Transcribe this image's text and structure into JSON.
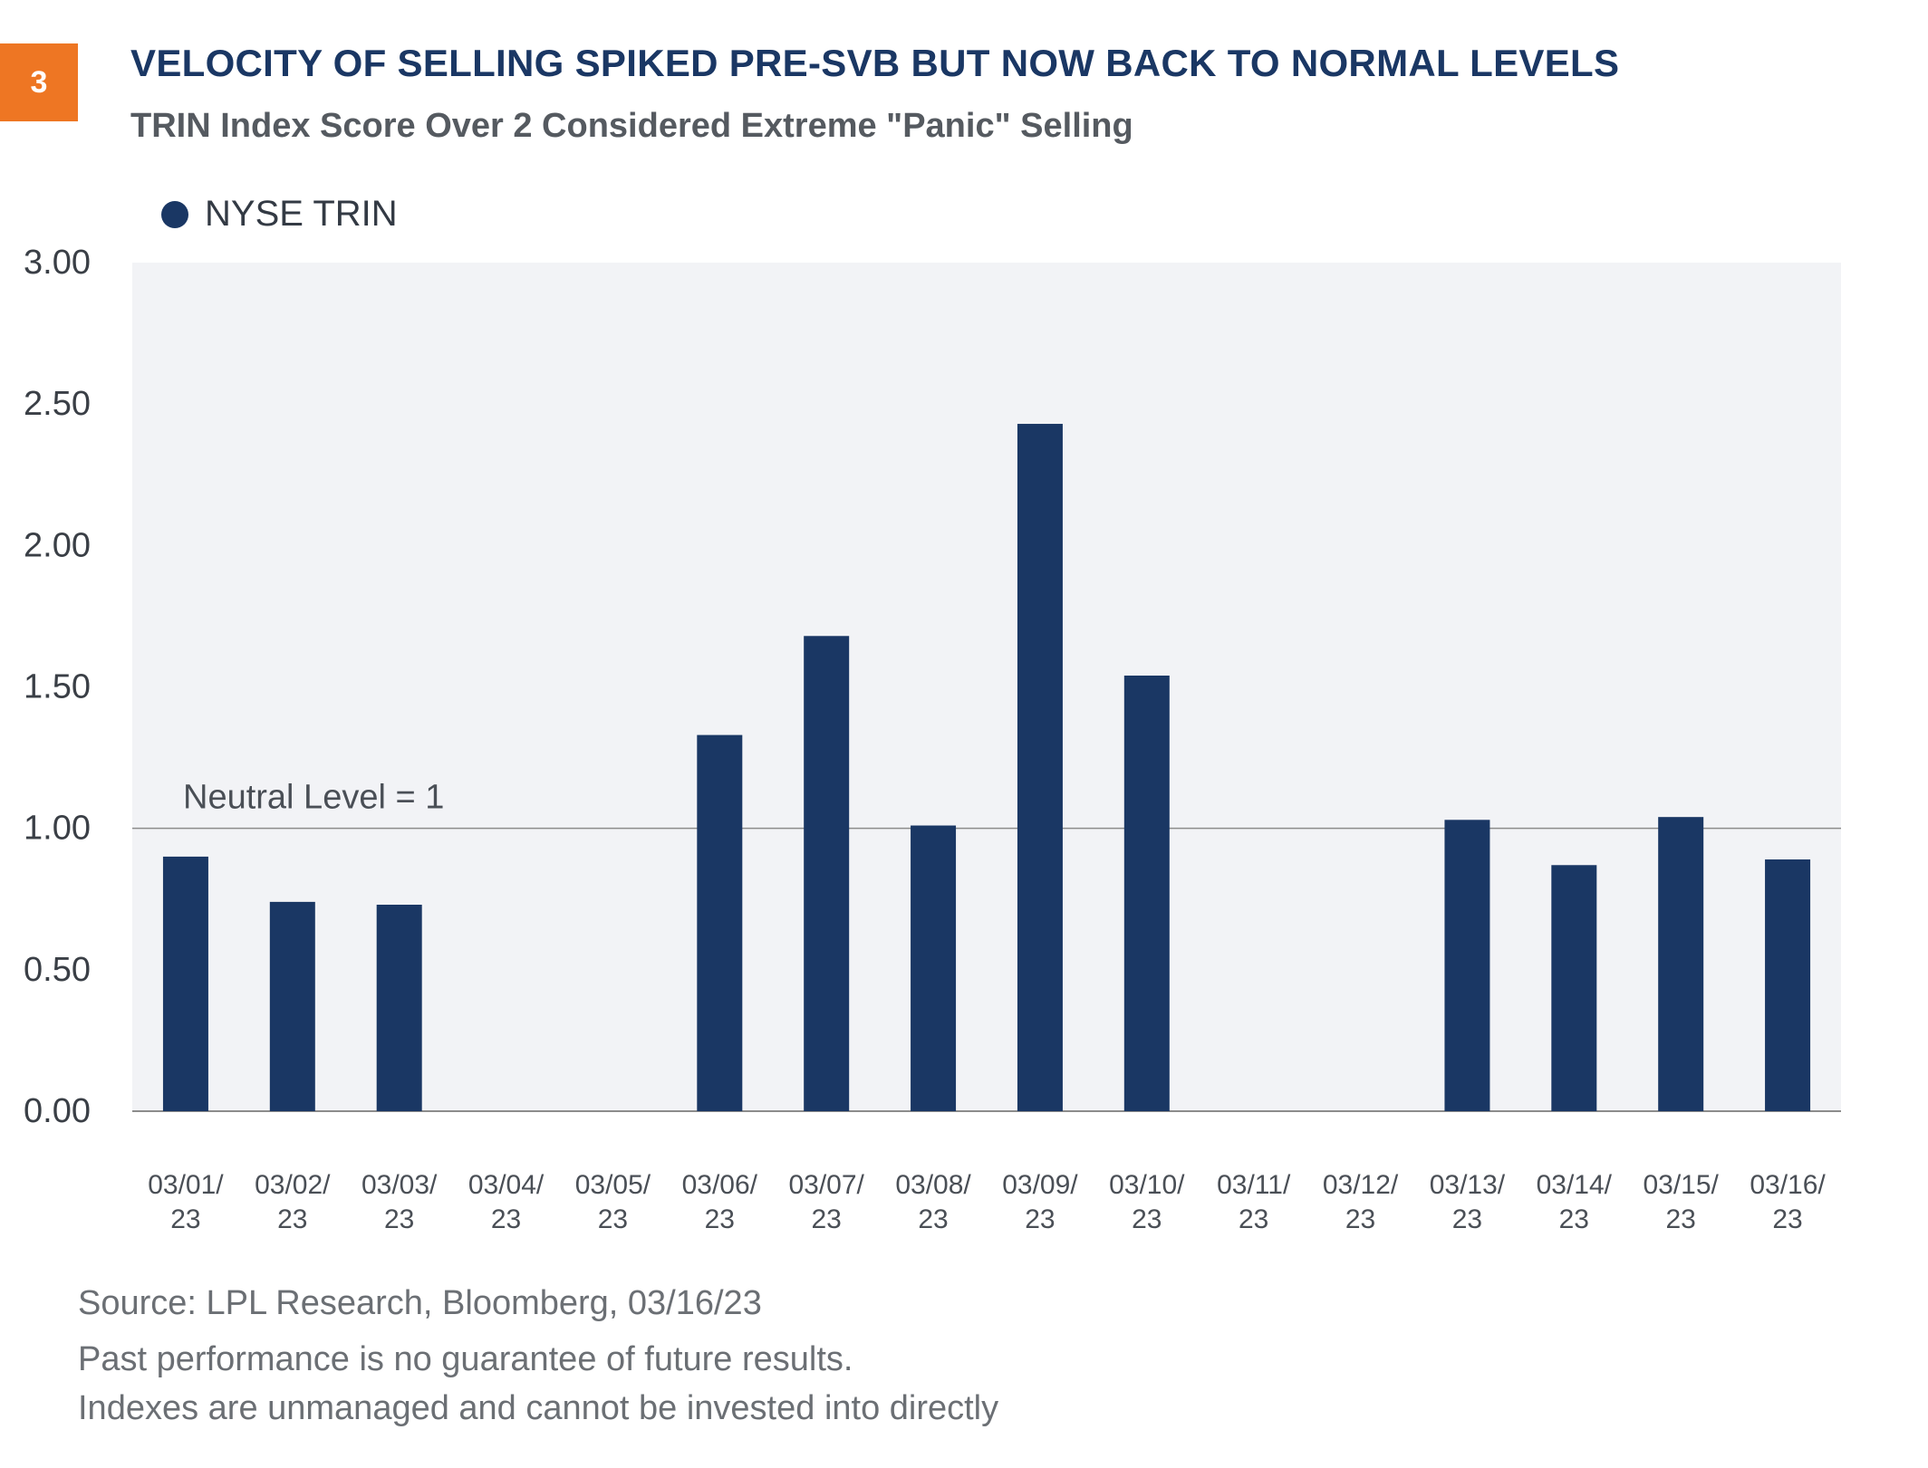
{
  "badge": "3",
  "title": "VELOCITY OF SELLING SPIKED PRE-SVB BUT NOW BACK TO NORMAL LEVELS",
  "subtitle": "TRIN Index Score Over 2 Considered Extreme \"Panic\" Selling",
  "legend": {
    "label": "NYSE TRIN",
    "color": "#1a3764"
  },
  "chart_data": {
    "type": "bar",
    "categories": [
      "03/01/23",
      "03/02/23",
      "03/03/23",
      "03/04/23",
      "03/05/23",
      "03/06/23",
      "03/07/23",
      "03/08/23",
      "03/09/23",
      "03/10/23",
      "03/11/23",
      "03/12/23",
      "03/13/23",
      "03/14/23",
      "03/15/23",
      "03/16/23"
    ],
    "category_labels": [
      [
        "03/01/",
        "23"
      ],
      [
        "03/02/",
        "23"
      ],
      [
        "03/03/",
        "23"
      ],
      [
        "03/04/",
        "23"
      ],
      [
        "03/05/",
        "23"
      ],
      [
        "03/06/",
        "23"
      ],
      [
        "03/07/",
        "23"
      ],
      [
        "03/08/",
        "23"
      ],
      [
        "03/09/",
        "23"
      ],
      [
        "03/10/",
        "23"
      ],
      [
        "03/11/",
        "23"
      ],
      [
        "03/12/",
        "23"
      ],
      [
        "03/13/",
        "23"
      ],
      [
        "03/14/",
        "23"
      ],
      [
        "03/15/",
        "23"
      ],
      [
        "03/16/",
        "23"
      ]
    ],
    "series": [
      {
        "name": "NYSE TRIN",
        "values": [
          0.9,
          0.74,
          0.73,
          null,
          null,
          1.33,
          1.68,
          1.01,
          2.43,
          1.54,
          null,
          null,
          1.03,
          0.87,
          1.04,
          0.89
        ]
      }
    ],
    "ylim": [
      0,
      3
    ],
    "yticks": [
      "0.00",
      "0.50",
      "1.00",
      "1.50",
      "2.00",
      "2.50",
      "3.00"
    ],
    "reference_line": {
      "value": 1,
      "label": "Neutral Level = 1"
    },
    "colors": {
      "bar": "#1a3764",
      "plot_bg": "#f2f3f6",
      "ref_line": "#8c8c8c"
    }
  },
  "footer": {
    "source": "Source: LPL Research, Bloomberg,  03/16/23",
    "disclaimer1": "Past performance is no guarantee of future results.",
    "disclaimer2": "Indexes are unmanaged and cannot be invested into directly"
  }
}
